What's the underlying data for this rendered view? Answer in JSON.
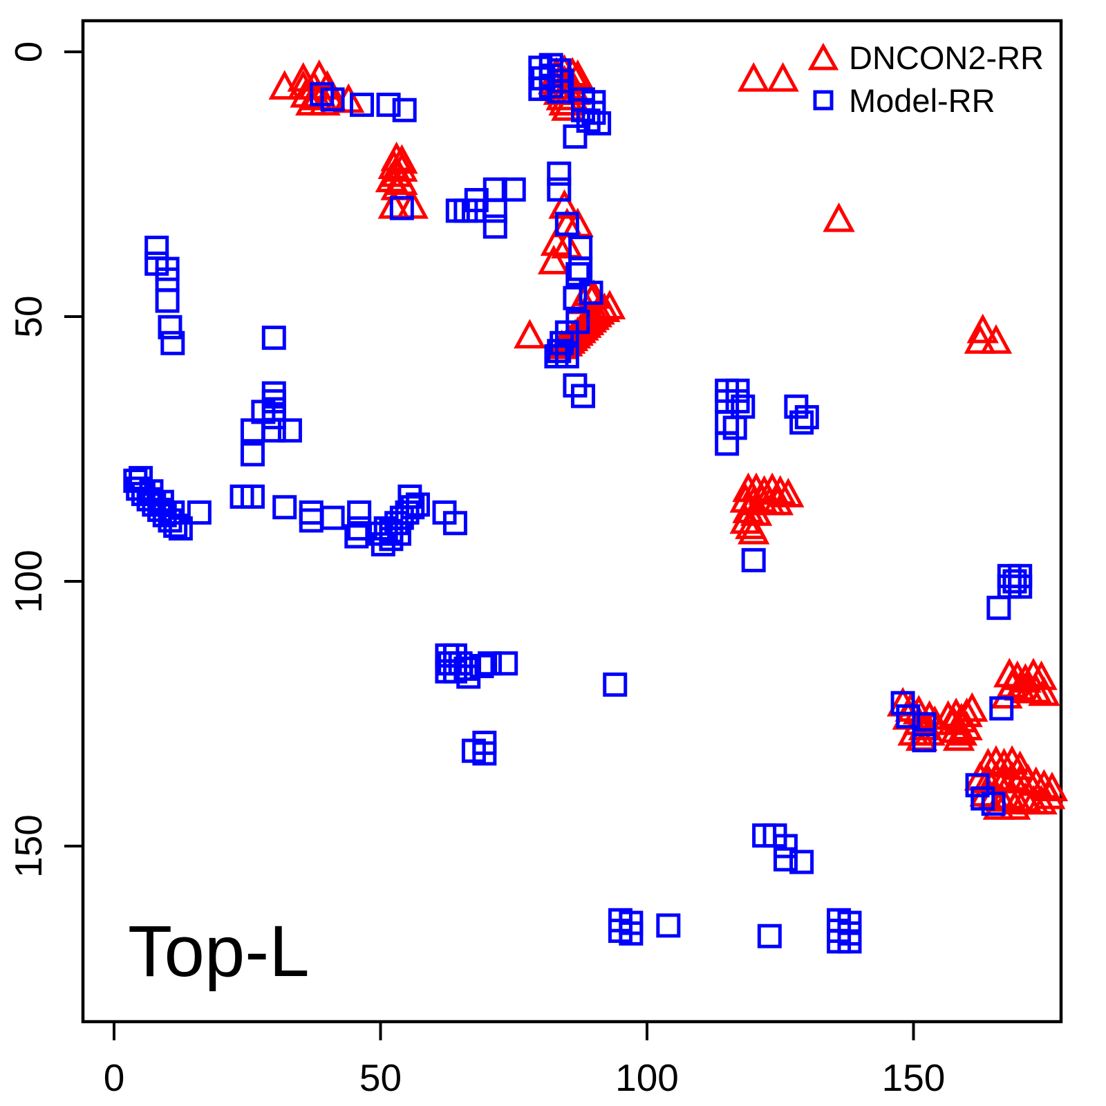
{
  "figure": {
    "annotation": "Top-L",
    "background_color": "#ffffff",
    "frame_color": "#000000"
  },
  "legend": {
    "position": "top-right",
    "items": [
      {
        "label": "DNCON2-RR",
        "marker": "triangle",
        "color": "#ff0000"
      },
      {
        "label": "Model-RR",
        "marker": "square",
        "color": "#0000ff"
      }
    ]
  },
  "chart_data": {
    "type": "scatter",
    "title": "",
    "annotation": "Top-L",
    "xlabel": "",
    "ylabel": "",
    "xlim": [
      -6,
      177
    ],
    "ylim": [
      183,
      -6
    ],
    "y_axis_reversed": true,
    "grid": false,
    "x_ticks": [
      0,
      50,
      100,
      150
    ],
    "y_ticks": [
      0,
      50,
      100,
      150
    ],
    "series": [
      {
        "name": "DNCON2-RR",
        "marker": "triangle",
        "color": "#ff0000",
        "points": [
          [
            32,
            7
          ],
          [
            35.5,
            5.5
          ],
          [
            38.5,
            5
          ],
          [
            35.5,
            7
          ],
          [
            37.5,
            7
          ],
          [
            40,
            7
          ],
          [
            36,
            8.5
          ],
          [
            38,
            9
          ],
          [
            40.5,
            9
          ],
          [
            44,
            9.5
          ],
          [
            37,
            10
          ],
          [
            39.5,
            10
          ],
          [
            120,
            5.5
          ],
          [
            125.5,
            5.5
          ],
          [
            83,
            4.5
          ],
          [
            84.5,
            4
          ],
          [
            86,
            4.5
          ],
          [
            87,
            5
          ],
          [
            82.5,
            6
          ],
          [
            83.5,
            6
          ],
          [
            84.5,
            6
          ],
          [
            85.5,
            6
          ],
          [
            83,
            7
          ],
          [
            84,
            7
          ],
          [
            85,
            7
          ],
          [
            86,
            7
          ],
          [
            83.5,
            8
          ],
          [
            84.5,
            8
          ],
          [
            85.5,
            8
          ],
          [
            86.5,
            8
          ],
          [
            84,
            9
          ],
          [
            85,
            9
          ],
          [
            86,
            9
          ],
          [
            84.5,
            10
          ],
          [
            85.5,
            10
          ],
          [
            85,
            11
          ],
          [
            53,
            20.5
          ],
          [
            54,
            21
          ],
          [
            52.5,
            22
          ],
          [
            54,
            22.5
          ],
          [
            53,
            23.5
          ],
          [
            52,
            24.5
          ],
          [
            54,
            25
          ],
          [
            53,
            26
          ],
          [
            52.5,
            29.5
          ],
          [
            56,
            29.5
          ],
          [
            136,
            32
          ],
          [
            84.5,
            29.5
          ],
          [
            85,
            33
          ],
          [
            87,
            33
          ],
          [
            83,
            36.5
          ],
          [
            85,
            37
          ],
          [
            82.5,
            40
          ],
          [
            78,
            54
          ],
          [
            84,
            56
          ],
          [
            85,
            55.5
          ],
          [
            85.5,
            55
          ],
          [
            86,
            54.5
          ],
          [
            86.5,
            54
          ],
          [
            87,
            53.5
          ],
          [
            87.5,
            53
          ],
          [
            88,
            52.5
          ],
          [
            88.5,
            52
          ],
          [
            89,
            51.5
          ],
          [
            89.5,
            51
          ],
          [
            90,
            50.5
          ],
          [
            90.5,
            50
          ],
          [
            91,
            49.5
          ],
          [
            92,
            49
          ],
          [
            93,
            48.5
          ],
          [
            89,
            46
          ],
          [
            90,
            46.5
          ],
          [
            88,
            47.5
          ],
          [
            163,
            53
          ],
          [
            162.5,
            55
          ],
          [
            165.5,
            55
          ],
          [
            119,
            83
          ],
          [
            120.5,
            83
          ],
          [
            122,
            83.5
          ],
          [
            123.5,
            83
          ],
          [
            125,
            83.5
          ],
          [
            126.5,
            84
          ],
          [
            118.5,
            85
          ],
          [
            120,
            85.5
          ],
          [
            121.5,
            85
          ],
          [
            123,
            85.5
          ],
          [
            124.5,
            85.5
          ],
          [
            119,
            87
          ],
          [
            120.5,
            87.5
          ],
          [
            118.5,
            89
          ],
          [
            119.5,
            90
          ],
          [
            120,
            91
          ],
          [
            148,
            123.5
          ],
          [
            149.5,
            124.5
          ],
          [
            151,
            125
          ],
          [
            149,
            126
          ],
          [
            151,
            127
          ],
          [
            153,
            126
          ],
          [
            154,
            127
          ],
          [
            152,
            128
          ],
          [
            153,
            129
          ],
          [
            150,
            129
          ],
          [
            151.5,
            130
          ],
          [
            156.5,
            126
          ],
          [
            157.5,
            127
          ],
          [
            158,
            125.5
          ],
          [
            159,
            126.5
          ],
          [
            160,
            125.5
          ],
          [
            161,
            124.5
          ],
          [
            158,
            128.5
          ],
          [
            159,
            129
          ],
          [
            160,
            128
          ],
          [
            158.5,
            130
          ],
          [
            168,
            118
          ],
          [
            169.5,
            118.5
          ],
          [
            171,
            119
          ],
          [
            172.5,
            118
          ],
          [
            174,
            118.5
          ],
          [
            168.5,
            120
          ],
          [
            170,
            120.5
          ],
          [
            171.5,
            121
          ],
          [
            173,
            121
          ],
          [
            174.5,
            121.5
          ],
          [
            167.5,
            122
          ],
          [
            164,
            135
          ],
          [
            165.5,
            134.5
          ],
          [
            167,
            135
          ],
          [
            168.5,
            134.5
          ],
          [
            170,
            135.5
          ],
          [
            162.5,
            137.5
          ],
          [
            164,
            138
          ],
          [
            165.5,
            137.5
          ],
          [
            167,
            138
          ],
          [
            168.5,
            137.5
          ],
          [
            170,
            138
          ],
          [
            171.5,
            138
          ],
          [
            173,
            138.5
          ],
          [
            174.5,
            139
          ],
          [
            163.5,
            140.5
          ],
          [
            165,
            141
          ],
          [
            166.5,
            141.5
          ],
          [
            168,
            141
          ],
          [
            169.5,
            142
          ],
          [
            171,
            141.5
          ],
          [
            172.5,
            142
          ],
          [
            174,
            142
          ],
          [
            175.5,
            141
          ],
          [
            176,
            139.5
          ],
          [
            166,
            143
          ],
          [
            169,
            143
          ]
        ]
      },
      {
        "name": "Model-RR",
        "marker": "square",
        "color": "#0000ff",
        "points": [
          [
            39,
            8
          ],
          [
            41,
            9
          ],
          [
            46.5,
            10
          ],
          [
            51.5,
            10
          ],
          [
            54.5,
            11
          ],
          [
            80,
            3
          ],
          [
            82,
            2.5
          ],
          [
            82,
            4.5
          ],
          [
            80.5,
            5
          ],
          [
            83.5,
            3.5
          ],
          [
            84,
            5.5
          ],
          [
            82,
            6.5
          ],
          [
            80,
            7
          ],
          [
            83.5,
            7.5
          ],
          [
            88,
            9
          ],
          [
            90,
            9.5
          ],
          [
            88,
            11
          ],
          [
            90,
            11.5
          ],
          [
            89,
            13
          ],
          [
            91,
            13.5
          ],
          [
            86.5,
            16
          ],
          [
            54,
            29.5
          ],
          [
            8,
            37
          ],
          [
            8,
            40
          ],
          [
            10,
            41
          ],
          [
            10,
            43
          ],
          [
            10,
            47
          ],
          [
            10.5,
            52
          ],
          [
            11,
            55
          ],
          [
            30,
            54
          ],
          [
            64.5,
            30
          ],
          [
            66,
            30
          ],
          [
            67.5,
            30
          ],
          [
            68,
            28
          ],
          [
            71.5,
            26
          ],
          [
            75,
            26
          ],
          [
            71.5,
            30
          ],
          [
            71.5,
            33
          ],
          [
            83.5,
            23
          ],
          [
            83.5,
            26
          ],
          [
            85,
            32.5
          ],
          [
            87.5,
            37
          ],
          [
            87.5,
            41
          ],
          [
            87,
            42
          ],
          [
            86.5,
            46.5
          ],
          [
            89.5,
            45.5
          ],
          [
            87,
            51
          ],
          [
            85,
            53
          ],
          [
            84,
            55
          ],
          [
            83.5,
            56.5
          ],
          [
            85,
            57.5
          ],
          [
            83,
            57.5
          ],
          [
            86.5,
            63
          ],
          [
            88,
            65
          ],
          [
            30,
            64.5
          ],
          [
            30,
            66
          ],
          [
            30,
            67.5
          ],
          [
            28,
            68
          ],
          [
            30,
            69
          ],
          [
            26,
            71.5
          ],
          [
            30,
            71.5
          ],
          [
            33,
            71.5
          ],
          [
            26,
            76
          ],
          [
            4,
            81
          ],
          [
            5,
            80.5
          ],
          [
            4.5,
            82.5
          ],
          [
            5.5,
            83.5
          ],
          [
            6.5,
            84.5
          ],
          [
            7.5,
            85.5
          ],
          [
            8.5,
            86.5
          ],
          [
            9.5,
            87.5
          ],
          [
            10.5,
            88.5
          ],
          [
            11.5,
            89.5
          ],
          [
            12.5,
            90
          ],
          [
            7,
            83
          ],
          [
            9,
            85
          ],
          [
            11,
            87
          ],
          [
            16,
            87
          ],
          [
            24,
            84
          ],
          [
            26,
            84
          ],
          [
            32,
            86
          ],
          [
            37,
            87
          ],
          [
            37,
            88.5
          ],
          [
            41,
            88
          ],
          [
            46,
            87
          ],
          [
            46,
            90
          ],
          [
            45.5,
            91.5
          ],
          [
            50,
            91
          ],
          [
            51,
            90
          ],
          [
            52,
            90.5
          ],
          [
            53,
            89
          ],
          [
            54,
            88
          ],
          [
            55,
            87
          ],
          [
            56,
            86
          ],
          [
            55.5,
            84
          ],
          [
            52,
            92
          ],
          [
            50.5,
            93
          ],
          [
            53.5,
            91
          ],
          [
            57,
            85.5
          ],
          [
            62,
            87
          ],
          [
            64,
            89
          ],
          [
            115,
            64
          ],
          [
            117,
            64
          ],
          [
            115,
            66
          ],
          [
            117,
            66
          ],
          [
            118,
            67
          ],
          [
            115,
            70
          ],
          [
            116.5,
            71
          ],
          [
            115,
            74
          ],
          [
            128,
            67
          ],
          [
            130,
            69
          ],
          [
            129,
            70
          ],
          [
            120,
            96
          ],
          [
            168,
            99
          ],
          [
            170,
            99
          ],
          [
            169,
            100
          ],
          [
            168,
            101
          ],
          [
            170,
            101
          ],
          [
            166,
            105
          ],
          [
            62.5,
            114
          ],
          [
            64,
            114
          ],
          [
            63,
            115.5
          ],
          [
            65,
            115.5
          ],
          [
            64,
            117
          ],
          [
            66,
            116.5
          ],
          [
            62.5,
            117
          ],
          [
            66.5,
            118
          ],
          [
            69,
            116
          ],
          [
            70.5,
            115.5
          ],
          [
            73.5,
            115.5
          ],
          [
            94,
            119.5
          ],
          [
            67.5,
            132
          ],
          [
            69.5,
            130.5
          ],
          [
            69.5,
            132.5
          ],
          [
            148,
            123
          ],
          [
            149,
            125.5
          ],
          [
            152,
            127
          ],
          [
            152,
            130
          ],
          [
            166.5,
            124
          ],
          [
            162,
            138.5
          ],
          [
            163,
            141
          ],
          [
            165,
            142
          ],
          [
            122,
            148
          ],
          [
            124,
            148
          ],
          [
            126,
            150
          ],
          [
            126,
            152.5
          ],
          [
            129,
            153
          ],
          [
            123,
            167
          ],
          [
            136,
            164
          ],
          [
            138,
            164.5
          ],
          [
            136,
            166
          ],
          [
            138,
            166.5
          ],
          [
            136,
            168
          ],
          [
            138,
            168
          ],
          [
            95,
            164
          ],
          [
            97,
            164.5
          ],
          [
            95,
            166
          ],
          [
            97,
            166.5
          ],
          [
            104,
            165
          ]
        ]
      }
    ]
  }
}
